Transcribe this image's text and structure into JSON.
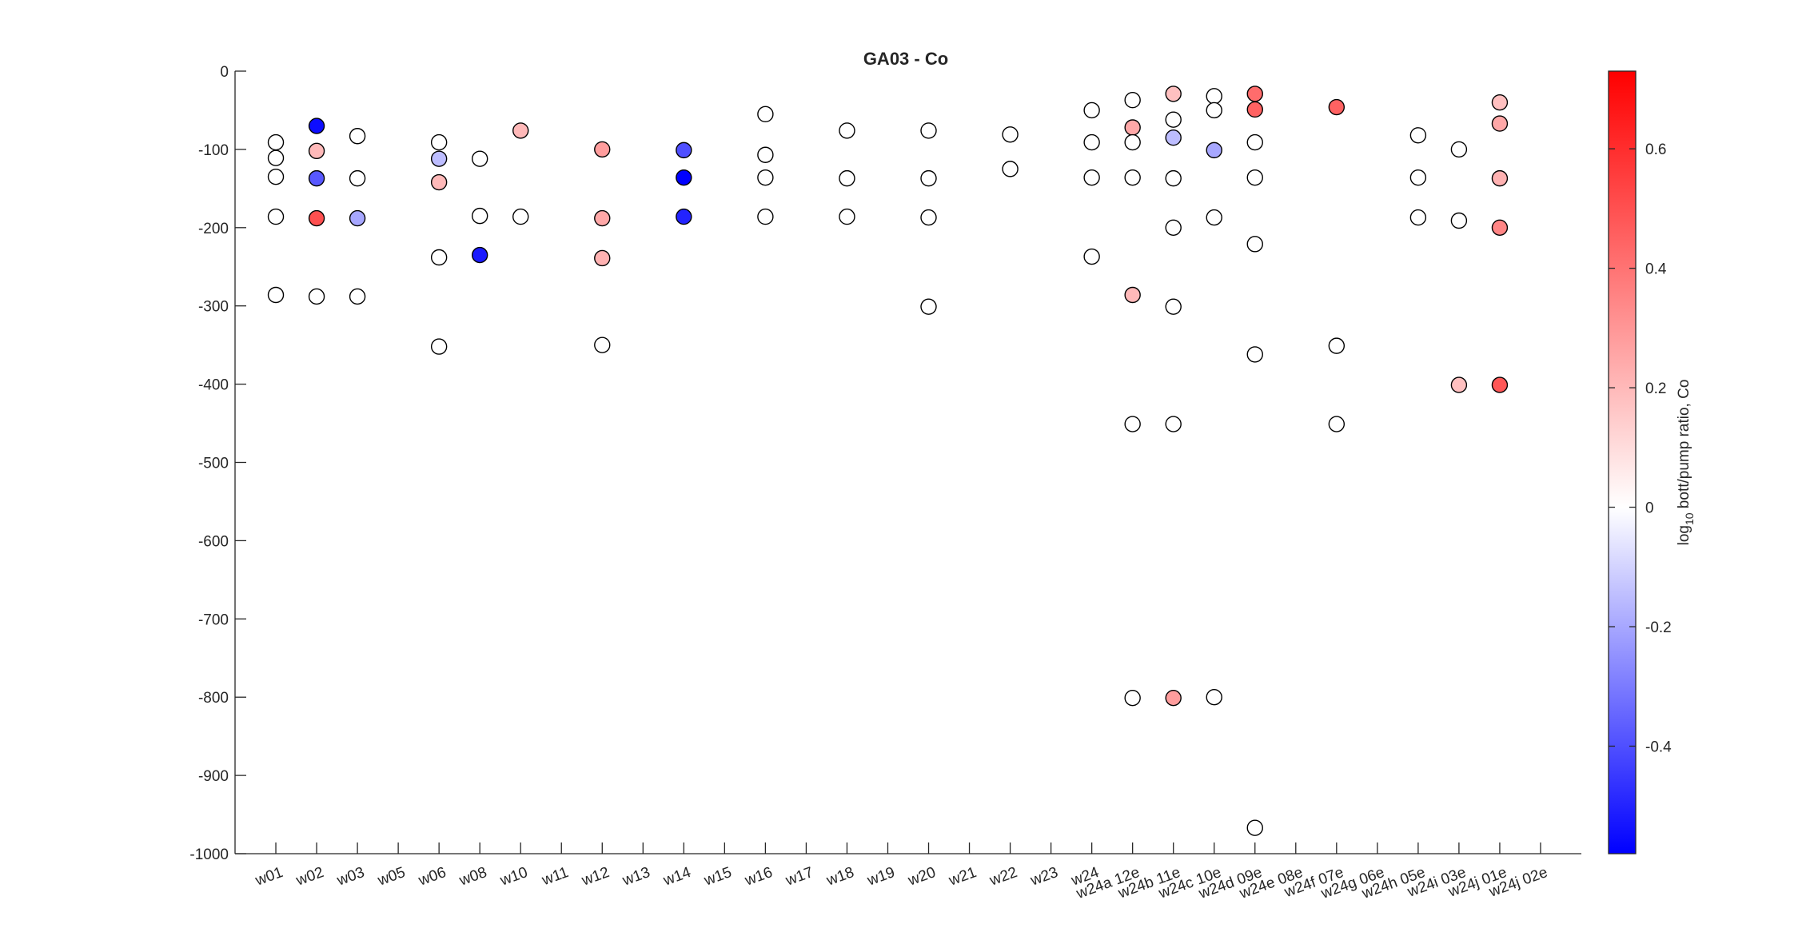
{
  "chart_data": {
    "type": "scatter",
    "title": "GA03 - Co",
    "xlabel": "",
    "ylabel": "",
    "categories": [
      "w01",
      "w02",
      "w03",
      "w05",
      "w06",
      "w08",
      "w10",
      "w11",
      "w12",
      "w13",
      "w14",
      "w15",
      "w16",
      "w17",
      "w18",
      "w19",
      "w20",
      "w21",
      "w22",
      "w23",
      "w24",
      "w24a 12e",
      "w24b 11e",
      "w24c 10e",
      "w24d 09e",
      "w24e 08e",
      "w24f 07e",
      "w24g 06e",
      "w24h 05e",
      "w24i 03e",
      "w24j 01e",
      "w24j 02e"
    ],
    "ylim": [
      -1000,
      0
    ],
    "yticks": [
      0,
      -100,
      -200,
      -300,
      -400,
      -500,
      -600,
      -700,
      -800,
      -900,
      -1000
    ],
    "colorbar": {
      "label": "log10 bott/pump ratio, Co",
      "label_main": "log",
      "label_sub": "10",
      "label_rest": " bott/pump ratio, Co",
      "range": [
        -0.58,
        0.73
      ],
      "ticks": [
        -0.4,
        -0.2,
        0,
        0.2,
        0.4,
        0.6
      ],
      "tick_labels": [
        "-0.4",
        "-0.2",
        "0",
        "0.2",
        "0.4",
        "0.6"
      ],
      "low_color": "#0000ff",
      "mid_color": "#ffffff",
      "high_color": "#ff0000"
    },
    "points": [
      {
        "cat": "w01",
        "y": -91,
        "c": 0
      },
      {
        "cat": "w01",
        "y": -111,
        "c": 0
      },
      {
        "cat": "w01",
        "y": -135,
        "c": 0
      },
      {
        "cat": "w01",
        "y": -186,
        "c": 0
      },
      {
        "cat": "w01",
        "y": -286,
        "c": 0
      },
      {
        "cat": "w02",
        "y": -70,
        "c": -0.55
      },
      {
        "cat": "w02",
        "y": -102,
        "c": 0.2
      },
      {
        "cat": "w02",
        "y": -137,
        "c": -0.38
      },
      {
        "cat": "w02",
        "y": -188,
        "c": 0.5
      },
      {
        "cat": "w02",
        "y": -288,
        "c": 0
      },
      {
        "cat": "w03",
        "y": -83,
        "c": 0
      },
      {
        "cat": "w03",
        "y": -137,
        "c": 0
      },
      {
        "cat": "w03",
        "y": -188,
        "c": -0.2
      },
      {
        "cat": "w03",
        "y": -288,
        "c": 0
      },
      {
        "cat": "w06",
        "y": -91,
        "c": 0
      },
      {
        "cat": "w06",
        "y": -112,
        "c": -0.15
      },
      {
        "cat": "w06",
        "y": -142,
        "c": 0.2
      },
      {
        "cat": "w06",
        "y": -238,
        "c": 0
      },
      {
        "cat": "w06",
        "y": -352,
        "c": 0
      },
      {
        "cat": "w08",
        "y": -112,
        "c": 0
      },
      {
        "cat": "w08",
        "y": -185,
        "c": 0
      },
      {
        "cat": "w08",
        "y": -235,
        "c": -0.52
      },
      {
        "cat": "w10",
        "y": -76,
        "c": 0.2
      },
      {
        "cat": "w10",
        "y": -186,
        "c": 0
      },
      {
        "cat": "w12",
        "y": -100,
        "c": 0.28
      },
      {
        "cat": "w12",
        "y": -188,
        "c": 0.25
      },
      {
        "cat": "w12",
        "y": -239,
        "c": 0.22
      },
      {
        "cat": "w12",
        "y": -350,
        "c": 0
      },
      {
        "cat": "w14",
        "y": -101,
        "c": -0.4
      },
      {
        "cat": "w14",
        "y": -136,
        "c": -0.58
      },
      {
        "cat": "w14",
        "y": -186,
        "c": -0.5
      },
      {
        "cat": "w16",
        "y": -55,
        "c": 0
      },
      {
        "cat": "w16",
        "y": -107,
        "c": 0
      },
      {
        "cat": "w16",
        "y": -136,
        "c": 0
      },
      {
        "cat": "w16",
        "y": -186,
        "c": 0
      },
      {
        "cat": "w18",
        "y": -76,
        "c": 0
      },
      {
        "cat": "w18",
        "y": -137,
        "c": 0
      },
      {
        "cat": "w18",
        "y": -186,
        "c": 0
      },
      {
        "cat": "w20",
        "y": -76,
        "c": 0
      },
      {
        "cat": "w20",
        "y": -137,
        "c": 0
      },
      {
        "cat": "w20",
        "y": -187,
        "c": 0
      },
      {
        "cat": "w20",
        "y": -301,
        "c": 0
      },
      {
        "cat": "w22",
        "y": -81,
        "c": 0
      },
      {
        "cat": "w22",
        "y": -125,
        "c": 0
      },
      {
        "cat": "w24",
        "y": -50,
        "c": 0
      },
      {
        "cat": "w24",
        "y": -91,
        "c": 0
      },
      {
        "cat": "w24",
        "y": -136,
        "c": 0
      },
      {
        "cat": "w24",
        "y": -237,
        "c": 0
      },
      {
        "cat": "w24a 12e",
        "y": -37,
        "c": 0
      },
      {
        "cat": "w24a 12e",
        "y": -72,
        "c": 0.25
      },
      {
        "cat": "w24a 12e",
        "y": -91,
        "c": 0
      },
      {
        "cat": "w24a 12e",
        "y": -136,
        "c": 0
      },
      {
        "cat": "w24a 12e",
        "y": -286,
        "c": 0.2
      },
      {
        "cat": "w24a 12e",
        "y": -451,
        "c": 0
      },
      {
        "cat": "w24a 12e",
        "y": -801,
        "c": 0
      },
      {
        "cat": "w24b 11e",
        "y": -29,
        "c": 0.18
      },
      {
        "cat": "w24b 11e",
        "y": -62,
        "c": 0
      },
      {
        "cat": "w24b 11e",
        "y": -85,
        "c": -0.15
      },
      {
        "cat": "w24b 11e",
        "y": -137,
        "c": 0
      },
      {
        "cat": "w24b 11e",
        "y": -200,
        "c": 0
      },
      {
        "cat": "w24b 11e",
        "y": -301,
        "c": 0
      },
      {
        "cat": "w24b 11e",
        "y": -451,
        "c": 0
      },
      {
        "cat": "w24b 11e",
        "y": -801,
        "c": 0.28
      },
      {
        "cat": "w24c 10e",
        "y": -32,
        "c": 0
      },
      {
        "cat": "w24c 10e",
        "y": -50,
        "c": 0
      },
      {
        "cat": "w24c 10e",
        "y": -101,
        "c": -0.2
      },
      {
        "cat": "w24c 10e",
        "y": -187,
        "c": 0
      },
      {
        "cat": "w24c 10e",
        "y": -800,
        "c": 0
      },
      {
        "cat": "w24d 09e",
        "y": -29,
        "c": 0.42
      },
      {
        "cat": "w24d 09e",
        "y": -49,
        "c": 0.45
      },
      {
        "cat": "w24d 09e",
        "y": -91,
        "c": 0
      },
      {
        "cat": "w24d 09e",
        "y": -136,
        "c": 0
      },
      {
        "cat": "w24d 09e",
        "y": -221,
        "c": 0
      },
      {
        "cat": "w24d 09e",
        "y": -362,
        "c": 0
      },
      {
        "cat": "w24d 09e",
        "y": -967,
        "c": 0
      },
      {
        "cat": "w24f 07e",
        "y": -46,
        "c": 0.45
      },
      {
        "cat": "w24f 07e",
        "y": -351,
        "c": 0
      },
      {
        "cat": "w24f 07e",
        "y": -451,
        "c": 0
      },
      {
        "cat": "w24h 05e",
        "y": -82,
        "c": 0
      },
      {
        "cat": "w24h 05e",
        "y": -136,
        "c": 0
      },
      {
        "cat": "w24h 05e",
        "y": -187,
        "c": 0
      },
      {
        "cat": "w24i 03e",
        "y": -100,
        "c": 0
      },
      {
        "cat": "w24i 03e",
        "y": -191,
        "c": 0
      },
      {
        "cat": "w24i 03e",
        "y": -401,
        "c": 0.18
      },
      {
        "cat": "w24j 01e",
        "y": -40,
        "c": 0.18
      },
      {
        "cat": "w24j 01e",
        "y": -67,
        "c": 0.25
      },
      {
        "cat": "w24j 01e",
        "y": -137,
        "c": 0.22
      },
      {
        "cat": "w24j 01e",
        "y": -200,
        "c": 0.35
      },
      {
        "cat": "w24j 01e",
        "y": -401,
        "c": 0.48
      }
    ]
  }
}
